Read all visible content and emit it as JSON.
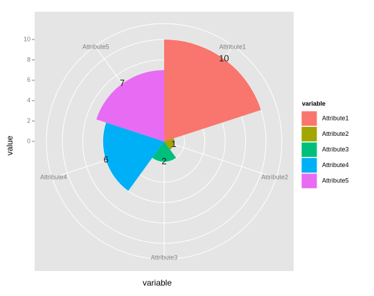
{
  "chart_data": {
    "type": "rose",
    "x_label": "variable",
    "y_label": "value",
    "legend_title": "variable",
    "categories": [
      "Attribute1",
      "Attribute2",
      "Attribute3",
      "Attribute4",
      "Attribute5"
    ],
    "values": [
      10,
      1,
      2,
      6,
      7
    ],
    "colors": [
      "#F8766D",
      "#A3A500",
      "#00BF7D",
      "#00B0F6",
      "#E76BF3"
    ],
    "ylim": [
      0,
      10
    ],
    "yticks": [
      0,
      2,
      4,
      6,
      8,
      10
    ],
    "grid": true,
    "legend": "right"
  }
}
